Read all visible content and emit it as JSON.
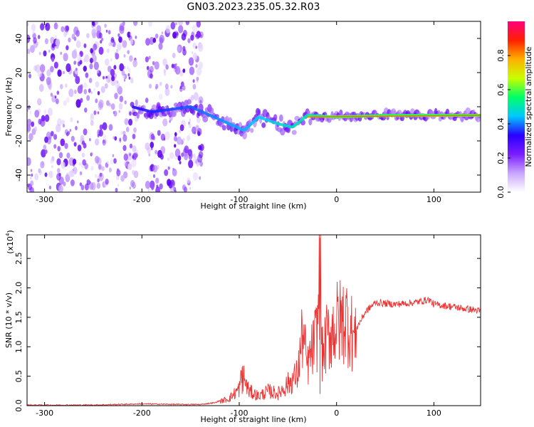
{
  "title": "GN03.2023.235.05.32.R03",
  "chart_data": [
    {
      "type": "heatmap",
      "xlabel": "Height of straight line (km)",
      "ylabel": "Frequency (Hz)",
      "xlim": [
        -318,
        148
      ],
      "ylim": [
        -50,
        50
      ],
      "xticks": [
        -300,
        -200,
        -100,
        0,
        100
      ],
      "xtick_labels": [
        "-300",
        "-200",
        "-100",
        "0",
        "100"
      ],
      "yticks": [
        40,
        20,
        0,
        -20,
        -40
      ],
      "ytick_labels": [
        "40",
        "20",
        "0",
        "-20",
        "-40"
      ],
      "colorbar": {
        "label": "Normalized spectral amplitude",
        "range": [
          0,
          1
        ],
        "ticks": [
          0.0,
          0.2,
          0.4,
          0.6,
          0.8
        ],
        "tick_labels": [
          "0.0",
          "0.2",
          "0.4",
          "0.6",
          "0.8"
        ],
        "colors": [
          "#ffffff",
          "#c9a6ff",
          "#7a1dff",
          "#2a00ff",
          "#00c8ff",
          "#00ff66",
          "#c8ff00",
          "#ffb000",
          "#ff2000",
          "#ff0080"
        ]
      },
      "features": [
        {
          "name": "noise",
          "x_range": [
            -318,
            -205
          ],
          "amplitude": 0.2
        },
        {
          "name": "noise",
          "x_range": [
            -195,
            -138
          ],
          "amplitude": 0.2
        },
        {
          "name": "trace",
          "points": [
            [
              -210,
              0
            ],
            [
              -190,
              -3
            ],
            [
              -150,
              0
            ],
            [
              -130,
              -5
            ],
            [
              -110,
              -10
            ],
            [
              -95,
              -14
            ],
            [
              -80,
              -6
            ],
            [
              -60,
              -10
            ],
            [
              -45,
              -12
            ],
            [
              -30,
              -5
            ],
            [
              0,
              -6
            ],
            [
              50,
              -5
            ],
            [
              100,
              -5
            ],
            [
              148,
              -5
            ]
          ],
          "amplitude": 0.85
        }
      ],
      "grid": false,
      "legend": "none"
    },
    {
      "type": "line",
      "xlabel": "Height of straight line (km)",
      "ylabel": "SNR (10 * v/v)",
      "yscale_label": "(x10",
      "yscale_exp": "4",
      "yscale_close": ")",
      "xlim": [
        -318,
        148
      ],
      "ylim": [
        0,
        2.9
      ],
      "xticks": [
        -300,
        -200,
        -100,
        0,
        100
      ],
      "xtick_labels": [
        "-300",
        "-200",
        "-100",
        "0",
        "100"
      ],
      "yticks": [
        0.0,
        0.5,
        1.0,
        1.5,
        2.0,
        2.5
      ],
      "ytick_labels": [
        "0.0",
        "0.5",
        "1.0",
        "1.5",
        "2.0",
        "2.5"
      ],
      "series": [
        {
          "color": "#ee3333",
          "x": [
            -318,
            -250,
            -200,
            -160,
            -140,
            -125,
            -110,
            -100,
            -97,
            -90,
            -80,
            -70,
            -60,
            -50,
            -40,
            -35,
            -30,
            -20,
            -17,
            -15,
            -10,
            0,
            10,
            20,
            30,
            40,
            60,
            80,
            95,
            100,
            110,
            120,
            130,
            140,
            148
          ],
          "y": [
            0.01,
            0.01,
            0.03,
            0.02,
            0.02,
            0.05,
            0.15,
            0.35,
            0.65,
            0.3,
            0.2,
            0.3,
            0.25,
            0.45,
            0.65,
            1.5,
            0.8,
            1.5,
            2.85,
            1.0,
            1.4,
            1.7,
            1.8,
            1.3,
            1.6,
            1.75,
            1.72,
            1.75,
            1.8,
            1.72,
            1.7,
            1.68,
            1.65,
            1.63,
            1.6
          ]
        }
      ],
      "grid": false,
      "legend": "none"
    }
  ]
}
